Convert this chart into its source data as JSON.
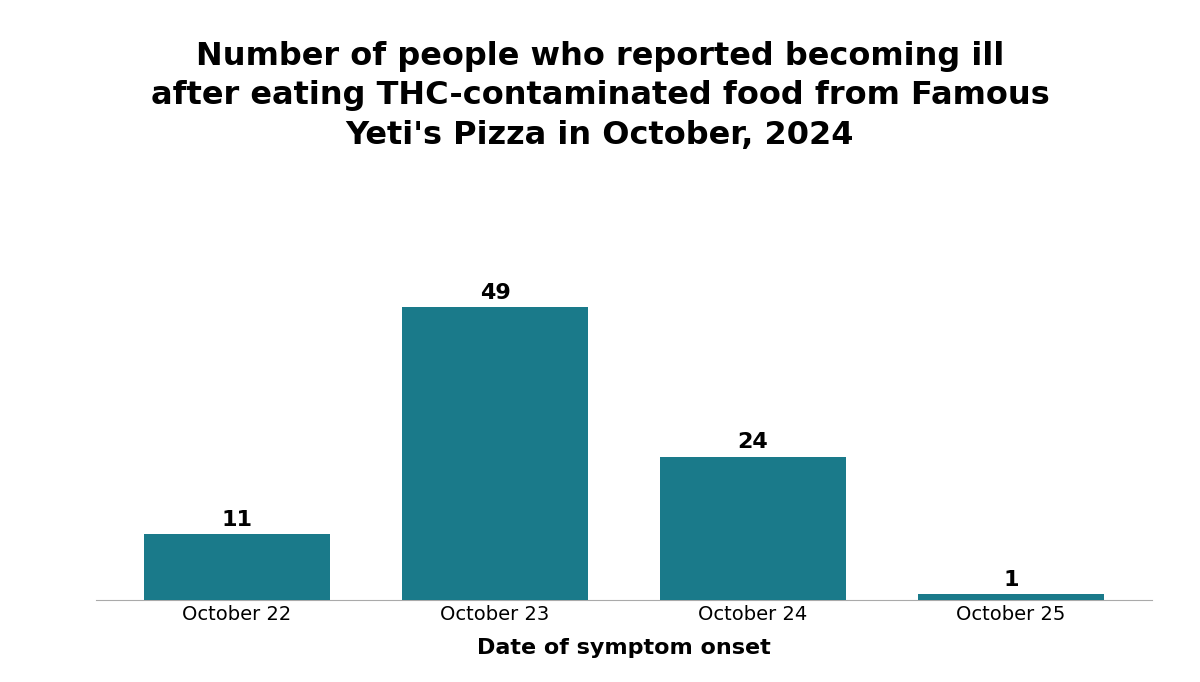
{
  "categories": [
    "October 22",
    "October 23",
    "October 24",
    "October 25"
  ],
  "values": [
    11,
    49,
    24,
    1
  ],
  "bar_color": "#1a7a8a",
  "title_line1": "Number of people who reported becoming ill",
  "title_line2": "after eating THC-contaminated food from Famous",
  "title_line3": "Yeti's Pizza in October, 2024",
  "xlabel": "Date of symptom onset",
  "ylabel": "",
  "ylim": [
    0,
    57
  ],
  "background_color": "#ffffff",
  "title_fontsize": 23,
  "xlabel_fontsize": 16,
  "label_fontsize": 16,
  "tick_fontsize": 14,
  "bar_width": 0.72
}
